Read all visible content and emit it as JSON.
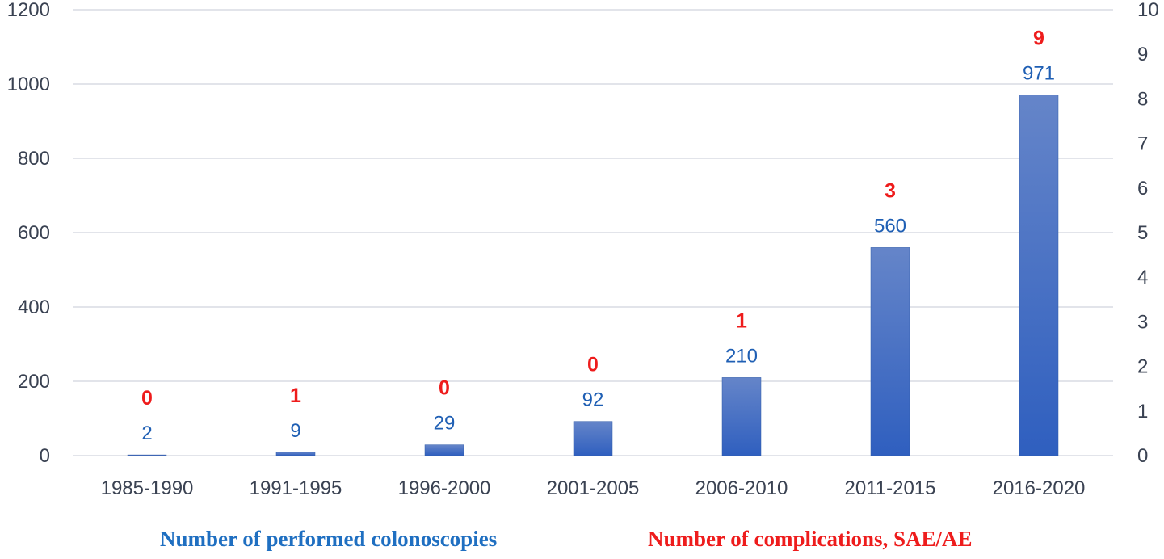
{
  "chart_data": {
    "type": "bar",
    "categories": [
      "1985-1990",
      "1991-1995",
      "1996-2000",
      "2001-2005",
      "2006-2010",
      "2011-2015",
      "2016-2020"
    ],
    "series": [
      {
        "name": "Number of performed colonoscopies",
        "axis": "left",
        "values": [
          2,
          9,
          29,
          92,
          210,
          560,
          971
        ]
      },
      {
        "name": "Number of complications, SAE/AE",
        "axis": "right",
        "values": [
          0,
          1,
          0,
          0,
          1,
          3,
          9
        ]
      }
    ],
    "title": "",
    "xlabel": "",
    "ylabel": "",
    "ylim": [
      0,
      1200
    ],
    "y_ticks": [
      "0",
      "200",
      "400",
      "600",
      "800",
      "1000",
      "1200"
    ],
    "y2lim": [
      0,
      10
    ],
    "y2_ticks": [
      "0",
      "1",
      "2",
      "3",
      "4",
      "5",
      "6",
      "7",
      "8",
      "9",
      "10"
    ],
    "grid": true,
    "legend_position": "bottom",
    "colors": {
      "bars": "#4472c4",
      "bar_labels": "#1f5fb4",
      "complication_labels": "#ee1c1c",
      "grid": "#d9dce3",
      "axis_text": "#3a4252"
    }
  },
  "legend": {
    "primary": "Number of performed colonoscopies",
    "secondary": "Number of complications, SAE/AE"
  }
}
